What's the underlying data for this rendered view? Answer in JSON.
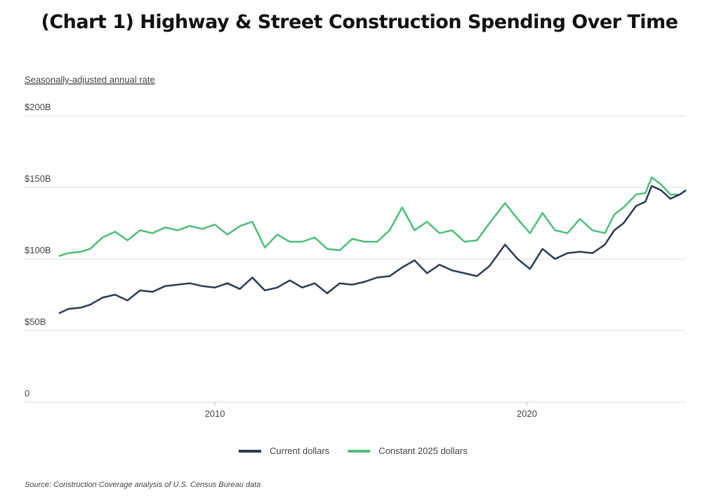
{
  "chart_data": {
    "type": "line",
    "title": "(Chart 1) Highway & Street Construction Spending Over Time",
    "subtitle": "Seasonally-adjusted annual rate",
    "source": "Source: Construction Coverage analysis of U.S. Census Bureau data",
    "x": [
      2005,
      2005.3,
      2005.7,
      2006,
      2006.4,
      2006.8,
      2007.2,
      2007.6,
      2008,
      2008.4,
      2008.8,
      2009.2,
      2009.6,
      2010,
      2010.4,
      2010.8,
      2011.2,
      2011.6,
      2012,
      2012.4,
      2012.8,
      2013.2,
      2013.6,
      2014,
      2014.4,
      2014.8,
      2015.2,
      2015.6,
      2016,
      2016.4,
      2016.8,
      2017.2,
      2017.6,
      2018,
      2018.4,
      2018.8,
      2019.3,
      2019.7,
      2020.1,
      2020.5,
      2020.9,
      2021.3,
      2021.7,
      2022.1,
      2022.5,
      2022.8,
      2023.1,
      2023.5,
      2023.8,
      2024.0,
      2024.3,
      2024.6,
      2024.9,
      2025.1
    ],
    "series": [
      {
        "name": "Current dollars",
        "color": "#2d3a4f",
        "values": [
          62,
          65,
          66,
          68,
          73,
          75,
          71,
          78,
          77,
          81,
          82,
          83,
          81,
          80,
          83,
          79,
          87,
          78,
          80,
          85,
          80,
          83,
          76,
          83,
          82,
          84,
          87,
          88,
          94,
          99,
          90,
          96,
          92,
          90,
          88,
          95,
          110,
          100,
          93,
          107,
          100,
          104,
          105,
          104,
          110,
          120,
          125,
          137,
          140,
          151,
          148,
          142,
          145,
          148
        ]
      },
      {
        "name": "Constant 2025 dollars",
        "color": "#4dbd7a",
        "values": [
          102,
          104,
          105,
          107,
          115,
          119,
          113,
          120,
          118,
          122,
          120,
          123,
          121,
          124,
          117,
          123,
          126,
          108,
          117,
          112,
          112,
          115,
          107,
          106,
          114,
          112,
          112,
          120,
          136,
          120,
          126,
          118,
          120,
          112,
          113,
          125,
          139,
          128,
          118,
          132,
          120,
          118,
          128,
          120,
          118,
          131,
          136,
          145,
          146,
          157,
          152,
          145,
          145,
          148
        ]
      }
    ],
    "xlim": [
      2003.9,
      2025.1
    ],
    "xticks": [
      2010,
      2020
    ],
    "ylim": [
      0,
      200
    ],
    "yticks": [
      0,
      {
        "value": 50,
        "label": "$50B"
      },
      {
        "value": 100,
        "label": "$100B"
      },
      {
        "value": 150,
        "label": "$150B"
      },
      {
        "value": 200,
        "label": "$200B"
      }
    ],
    "grid": true,
    "legend": "bottom"
  }
}
